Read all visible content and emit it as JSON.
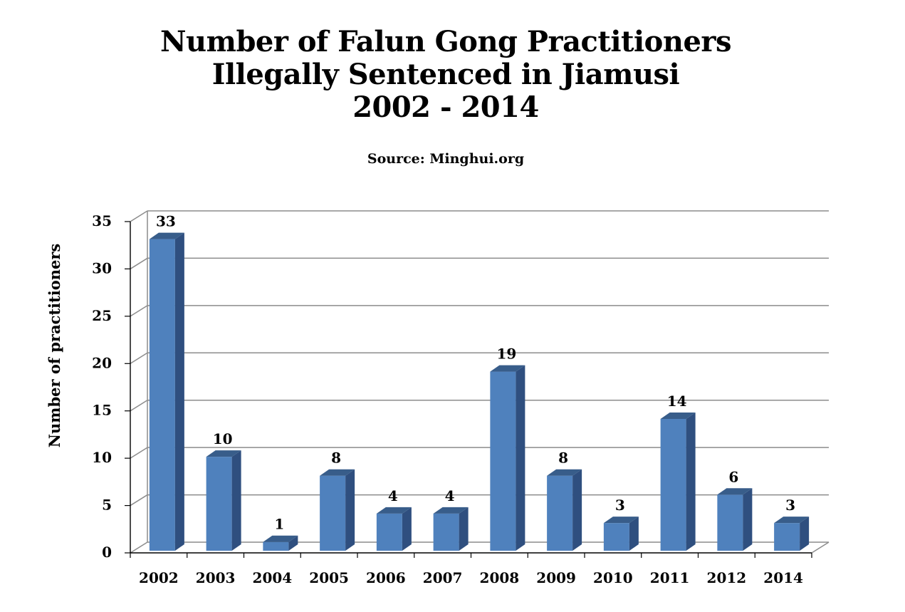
{
  "chart_data": {
    "type": "bar",
    "title": "Number of Falun Gong Practitioners",
    "title_line2": "Illegally Sentenced in Jiamusi",
    "title_line3": "2002 - 2014",
    "subtitle": "Source: Minghui.org",
    "xlabel": "",
    "ylabel": "Number of practitioners",
    "categories": [
      "2002",
      "2003",
      "2004",
      "2005",
      "2006",
      "2007",
      "2008",
      "2009",
      "2010",
      "2011",
      "2012",
      "2014"
    ],
    "values": [
      33,
      10,
      1,
      8,
      4,
      4,
      19,
      8,
      3,
      14,
      6,
      3
    ],
    "ylim": [
      0,
      35
    ],
    "yticks": [
      0,
      5,
      10,
      15,
      20,
      25,
      30,
      35
    ],
    "grid": true,
    "legend": "none",
    "bar_color": "#4f81bd",
    "bar_side_color": "#2f4f7f",
    "bar_top_color": "#385d8a",
    "grid_color": "#8c8c8c"
  }
}
